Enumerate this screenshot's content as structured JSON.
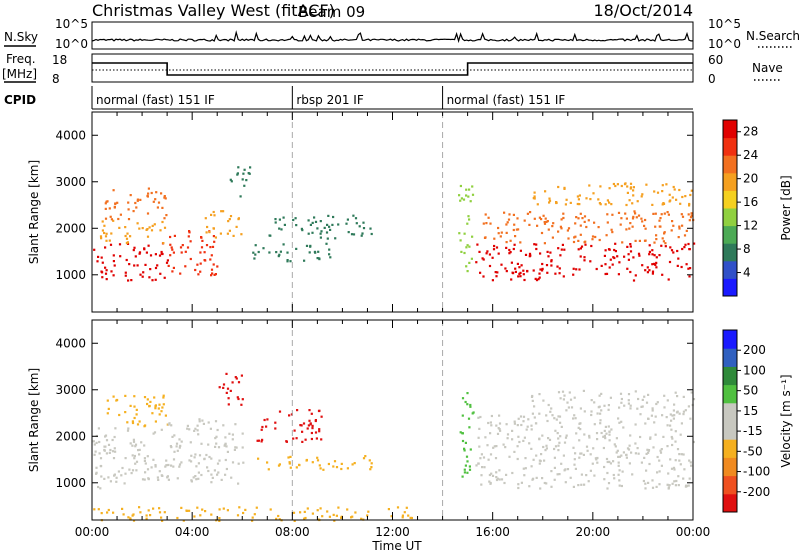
{
  "header": {
    "title": "Christmas Valley West (fitACF)",
    "beam": "Beam 09",
    "date": "18/Oct/2014"
  },
  "strip_charts": {
    "nsky": {
      "label": "N.Sky",
      "left_ticks": [
        "10^5",
        "10^0"
      ],
      "right_label": "N.Search",
      "right_ticks": [
        "10^5",
        "10^0"
      ]
    },
    "freq": {
      "label_line1": "Freq.",
      "label_line2": "[MHz]",
      "left_ticks": [
        "18",
        "8"
      ],
      "right_label": "Nave",
      "right_ticks": [
        "60",
        "0"
      ]
    }
  },
  "cpid": {
    "label": "CPID",
    "segments": [
      {
        "label": "normal (fast) 151 IF",
        "start": "00:00"
      },
      {
        "label": "rbsp 201 IF",
        "start": "08:00"
      },
      {
        "label": "normal (fast) 151 IF",
        "start": "14:00"
      }
    ]
  },
  "time_axis": {
    "label": "Time UT",
    "ticks": [
      "00:00",
      "04:00",
      "08:00",
      "12:00",
      "16:00",
      "20:00",
      "00:00"
    ]
  },
  "colors": {
    "power": [
      "#1a1aff",
      "#3050c8",
      "#2f7a5a",
      "#4caa55",
      "#90d040",
      "#f5d020",
      "#f5a020",
      "#f27020",
      "#f03010",
      "#e00000"
    ],
    "velocity": [
      "#e01010",
      "#ef5020",
      "#f08a20",
      "#f5b020",
      "#c8c8c0",
      "#c8c8c0",
      "#50c040",
      "#2f8a3a",
      "#3060c0",
      "#1a1aff"
    ]
  },
  "chart_data": [
    {
      "type": "heatmap",
      "title": "Power",
      "ylabel": "Slant Range [km]",
      "xlabel": "Time UT",
      "ylim": [
        200,
        4500
      ],
      "y_ticks": [
        1000,
        2000,
        3000,
        4000
      ],
      "colorbar": {
        "label": "Power [dB]",
        "ticks": [
          4,
          8,
          12,
          16,
          20,
          24,
          28
        ],
        "range": [
          0,
          30
        ]
      },
      "regions": [
        {
          "t0": 0.0,
          "t1": 3.0,
          "r0": 900,
          "r1": 1700,
          "level": 28
        },
        {
          "t0": 0.3,
          "t1": 3.0,
          "r0": 1700,
          "r1": 2200,
          "level": 20
        },
        {
          "t0": 0.5,
          "t1": 3.0,
          "r0": 2200,
          "r1": 2900,
          "level": 22
        },
        {
          "t0": 3.0,
          "t1": 5.0,
          "r0": 1000,
          "r1": 2000,
          "level": 26
        },
        {
          "t0": 4.5,
          "t1": 6.0,
          "r0": 1800,
          "r1": 2400,
          "level": 18
        },
        {
          "t0": 5.5,
          "t1": 6.3,
          "r0": 2700,
          "r1": 3400,
          "level": 6
        },
        {
          "t0": 6.3,
          "t1": 9.5,
          "r0": 1300,
          "r1": 1700,
          "level": 6
        },
        {
          "t0": 7.0,
          "t1": 11.2,
          "r0": 1800,
          "r1": 2300,
          "level": 8
        },
        {
          "t0": 14.6,
          "t1": 15.2,
          "r0": 1100,
          "r1": 3000,
          "level": 14
        },
        {
          "t0": 15.3,
          "t1": 24.0,
          "r0": 900,
          "r1": 1700,
          "level": 28
        },
        {
          "t0": 15.6,
          "t1": 24.0,
          "r0": 1700,
          "r1": 2400,
          "level": 22
        },
        {
          "t0": 17.5,
          "t1": 24.0,
          "r0": 2500,
          "r1": 3000,
          "level": 18
        }
      ]
    },
    {
      "type": "heatmap",
      "title": "Velocity",
      "ylabel": "Slant Range [km]",
      "xlabel": "Time UT",
      "ylim": [
        200,
        4500
      ],
      "y_ticks": [
        1000,
        2000,
        3000,
        4000
      ],
      "colorbar": {
        "label": "Velocity [m s⁻¹]",
        "ticks": [
          "200",
          "100",
          "50",
          "15",
          "-15",
          "-50",
          "-100",
          "-200"
        ],
        "range": [
          -250,
          250
        ]
      },
      "regions": [
        {
          "t0": 0.0,
          "t1": 3.0,
          "r0": 900,
          "r1": 2200,
          "level": 0
        },
        {
          "t0": 0.5,
          "t1": 3.0,
          "r0": 2200,
          "r1": 2900,
          "level": -60
        },
        {
          "t0": 3.0,
          "t1": 6.0,
          "r0": 1000,
          "r1": 2400,
          "level": 0
        },
        {
          "t0": 5.0,
          "t1": 6.0,
          "r0": 2700,
          "r1": 3400,
          "level": -220
        },
        {
          "t0": 6.5,
          "t1": 9.2,
          "r0": 1900,
          "r1": 2600,
          "level": -220
        },
        {
          "t0": 6.5,
          "t1": 11.3,
          "r0": 1300,
          "r1": 1600,
          "level": -60
        },
        {
          "t0": 0.0,
          "t1": 13.0,
          "r0": 200,
          "r1": 500,
          "level": -60
        },
        {
          "t0": 14.6,
          "t1": 15.2,
          "r0": 1100,
          "r1": 3000,
          "level": 60
        },
        {
          "t0": 15.3,
          "t1": 24.0,
          "r0": 900,
          "r1": 2500,
          "level": 0
        },
        {
          "t0": 17.5,
          "t1": 24.0,
          "r0": 2500,
          "r1": 3000,
          "level": 0
        }
      ]
    }
  ]
}
